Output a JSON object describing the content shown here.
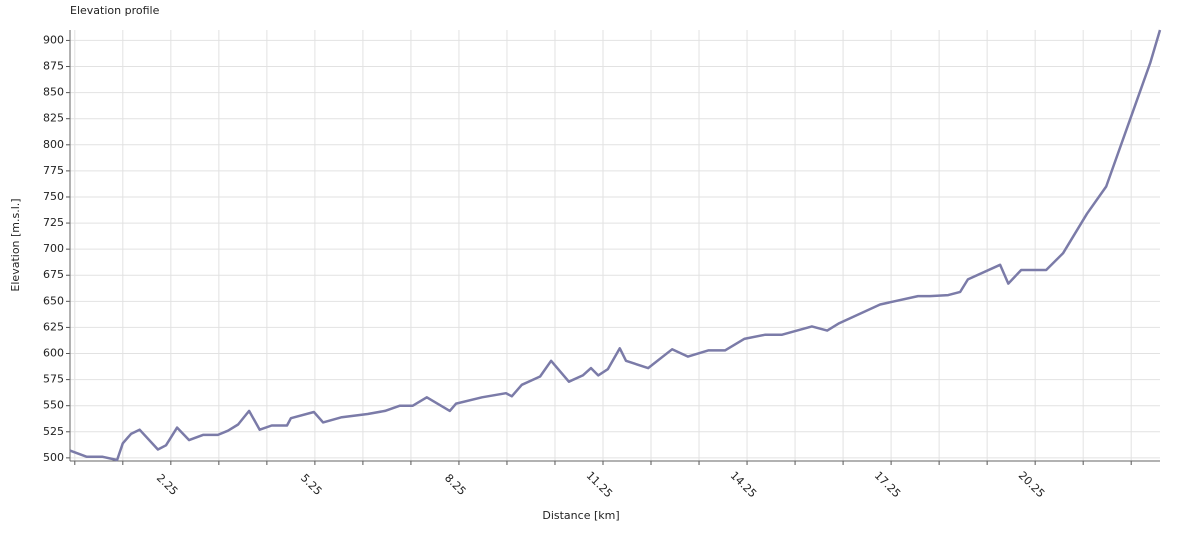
{
  "chart_data": {
    "type": "line",
    "title": "Elevation profile",
    "x_label": "Distance [km]",
    "y_label": "Elevation [m.s.l.]",
    "x": [
      0.15,
      0.5,
      0.83,
      1.13,
      1.25,
      1.42,
      1.6,
      1.98,
      2.15,
      2.38,
      2.63,
      2.92,
      3.23,
      3.44,
      3.65,
      3.88,
      4.1,
      4.35,
      4.67,
      4.75,
      5.23,
      5.42,
      5.81,
      6.35,
      6.71,
      7.02,
      7.29,
      7.58,
      8.06,
      8.19,
      8.73,
      9.23,
      9.35,
      9.56,
      9.94,
      10.17,
      10.54,
      10.83,
      11.0,
      11.15,
      11.35,
      11.6,
      11.73,
      12.19,
      12.69,
      13.02,
      13.44,
      13.79,
      14.19,
      14.63,
      14.98,
      15.6,
      15.92,
      16.17,
      17.02,
      17.81,
      18.06,
      18.44,
      18.69,
      18.85,
      19.52,
      19.69,
      19.96,
      20.48,
      20.83,
      21.33,
      21.73,
      22.65,
      22.85
    ],
    "series": [
      {
        "name": "Elevation",
        "color": "#7b7ba8",
        "values": [
          507,
          501,
          501,
          498,
          514,
          523,
          527,
          508,
          512,
          529,
          517,
          522,
          522,
          526,
          532,
          545,
          527,
          531,
          531,
          538,
          544,
          534,
          539,
          542,
          545,
          550,
          550,
          558,
          545,
          552,
          558,
          562,
          559,
          570,
          578,
          593,
          573,
          579,
          586,
          579,
          585,
          605,
          593,
          586,
          604,
          597,
          603,
          603,
          614,
          618,
          618,
          626,
          622,
          629,
          647,
          655,
          655,
          656,
          659,
          671,
          685,
          667,
          680,
          680,
          696,
          734,
          760,
          879,
          910
        ]
      }
    ],
    "xlim": [
      0.15,
      22.85
    ],
    "xticks": [
      2.25,
      5.25,
      8.25,
      11.25,
      14.25,
      17.25,
      20.25
    ],
    "xticks_minor": [
      0.25,
      1.25,
      3.25,
      4.25,
      6.25,
      7.25,
      9.25,
      10.25,
      12.25,
      13.25,
      15.25,
      16.25,
      18.25,
      19.25,
      21.25,
      22.25
    ],
    "ylim": [
      497,
      910
    ],
    "yticks": [
      500,
      525,
      550,
      575,
      600,
      625,
      650,
      675,
      700,
      725,
      750,
      775,
      800,
      825,
      850,
      875,
      900
    ],
    "grid": true
  }
}
